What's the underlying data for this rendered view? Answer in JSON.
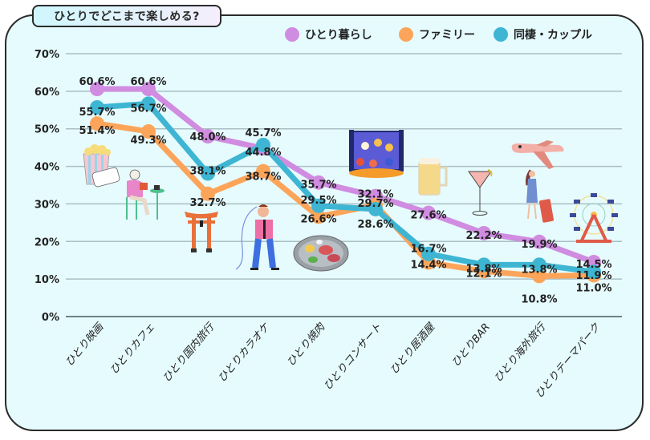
{
  "title": "ひとりでどこまで楽しめる?",
  "chart_data": {
    "type": "line",
    "title": "ひとりでどこまで楽しめる?",
    "xlabel": "",
    "ylabel": "",
    "ylim": [
      0,
      70
    ],
    "yticks": [
      0,
      10,
      20,
      30,
      40,
      50,
      60,
      70
    ],
    "ytick_labels": [
      "0%",
      "10%",
      "20%",
      "30%",
      "40%",
      "50%",
      "60%",
      "70%"
    ],
    "grid": true,
    "legend_position": "top-right",
    "categories": [
      "ひとり映画",
      "ひとりカフェ",
      "ひとり国内旅行",
      "ひとりカラオケ",
      "ひとり焼肉",
      "ひとりコンサート",
      "ひとり居酒屋",
      "ひとりBAR",
      "ひとり海外旅行",
      "ひとりテーマパーク"
    ],
    "series": [
      {
        "name": "ひとり暮らし",
        "color": "#d08ce0",
        "values": [
          60.6,
          60.6,
          48.0,
          44.8,
          35.7,
          32.1,
          27.6,
          22.2,
          19.9,
          14.5
        ]
      },
      {
        "name": "ファミリー",
        "color": "#fca55a",
        "values": [
          51.4,
          49.3,
          32.7,
          38.7,
          26.6,
          29.7,
          14.4,
          12.1,
          10.8,
          11.0
        ]
      },
      {
        "name": "同棲・カップル",
        "color": "#3eb6d3",
        "values": [
          55.7,
          56.7,
          38.1,
          45.7,
          29.5,
          28.6,
          16.7,
          13.8,
          13.8,
          11.9
        ]
      }
    ],
    "data_labels": [
      [
        "60.6%",
        "60.6%",
        "48.0%",
        "44.8%",
        "35.7%",
        "32.1%",
        "27.6%",
        "22.2%",
        "19.9%",
        "14.5%"
      ],
      [
        "51.4%",
        "49.3%",
        "32.7%",
        "38.7%",
        "26.6%",
        "29.7%",
        "14.4%",
        "12.1%",
        "10.8%",
        "11.0%"
      ],
      [
        "55.7%",
        "56.7%",
        "38.1%",
        "45.7%",
        "29.5%",
        "28.6%",
        "16.7%",
        "13.8%",
        "13.8%",
        "11.9%"
      ]
    ]
  },
  "colors": {
    "background": "#e6fbfd",
    "gridline": "#a9bfc4",
    "axis": "#6b8388",
    "text": "#222222"
  },
  "illustrations": [
    "popcorn-icon",
    "cafe-reader-icon",
    "torii-gate-icon",
    "karaoke-singer-icon",
    "yakiniku-grill-icon",
    "concert-crowd-icon",
    "beer-mug-icon",
    "cocktail-glass-icon",
    "airplane-traveler-icon",
    "ferris-wheel-icon"
  ]
}
